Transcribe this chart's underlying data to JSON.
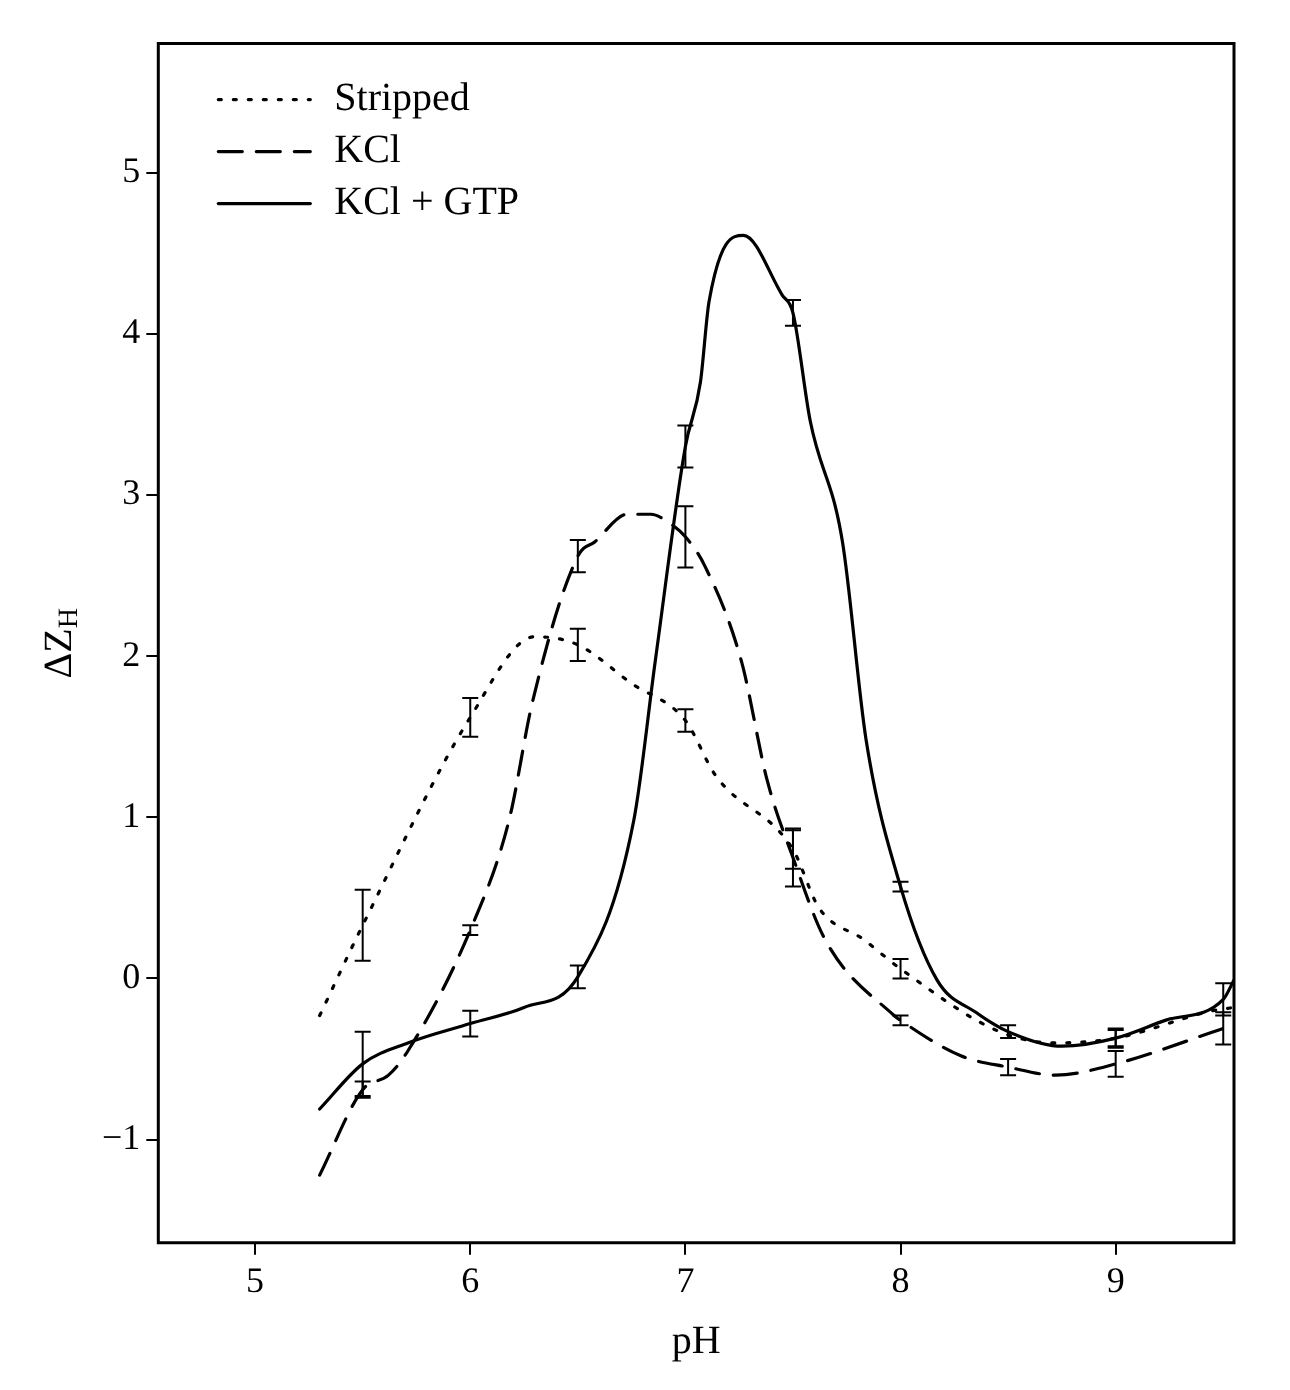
{
  "chart_data": {
    "type": "line",
    "xlabel": "pH",
    "ylabel": "ΔZ$_{H}$",
    "xlim": [
      4.55,
      9.55
    ],
    "ylim": [
      -1.64,
      5.8
    ],
    "xticks": [
      5,
      6,
      7,
      8,
      9
    ],
    "yticks": [
      -1,
      0,
      1,
      2,
      3,
      4,
      5
    ],
    "grid": false,
    "legend": "top left",
    "marker": "none",
    "series": [
      {
        "name": "Stripped",
        "color": "#000000",
        "line_style": "dotted",
        "x": [
          5.3,
          5.5,
          6.0,
          6.3,
          6.5,
          6.75,
          7.0,
          7.14,
          7.5,
          7.62,
          7.83,
          8.0,
          8.46,
          8.72,
          9.0,
          9.45,
          9.55
        ],
        "values": [
          -0.23,
          0.33,
          1.62,
          2.12,
          2.07,
          1.83,
          1.6,
          1.26,
          0.8,
          0.44,
          0.24,
          0.06,
          -0.33,
          -0.4,
          -0.37,
          -0.2,
          -0.18
        ],
        "errors": [
          null,
          0.22,
          0.12,
          null,
          0.1,
          null,
          0.07,
          null,
          0.12,
          null,
          null,
          0.06,
          null,
          null,
          0.06,
          null,
          null
        ]
      },
      {
        "name": "KCl",
        "color": "#000000",
        "line_style": "dashed",
        "x": [
          5.3,
          5.5,
          5.62,
          5.71,
          6.0,
          6.18,
          6.29,
          6.5,
          6.58,
          6.73,
          6.84,
          6.91,
          7.0,
          7.09,
          7.26,
          7.38,
          7.5,
          7.65,
          7.97,
          8.0,
          8.28,
          8.5,
          8.72,
          9.0,
          9.5
        ],
        "values": [
          -1.22,
          -0.69,
          -0.6,
          -0.45,
          0.3,
          0.98,
          1.72,
          2.62,
          2.71,
          2.88,
          2.88,
          2.84,
          2.74,
          2.56,
          1.97,
          1.23,
          0.75,
          0.24,
          -0.23,
          -0.26,
          -0.48,
          -0.55,
          -0.6,
          -0.53,
          -0.31
        ],
        "errors": [
          null,
          0.05,
          null,
          null,
          0.03,
          null,
          null,
          0.1,
          null,
          null,
          null,
          null,
          0.19,
          null,
          null,
          null,
          0.18,
          null,
          null,
          0.03,
          null,
          0.05,
          null,
          0.08,
          0.1
        ]
      },
      {
        "name": "KCl + GTP",
        "color": "#000000",
        "line_style": "solid",
        "x": [
          5.3,
          5.5,
          5.71,
          6.0,
          6.25,
          6.5,
          6.76,
          6.86,
          7.0,
          7.07,
          7.11,
          7.27,
          7.45,
          7.5,
          7.58,
          7.73,
          7.84,
          8.0,
          8.17,
          8.35,
          8.5,
          8.75,
          9.0,
          9.23,
          9.5,
          9.55
        ],
        "values": [
          -0.81,
          -0.53,
          -0.4,
          -0.28,
          -0.18,
          0.01,
          0.98,
          1.97,
          3.3,
          3.7,
          4.2,
          4.61,
          4.24,
          4.13,
          3.46,
          2.71,
          1.48,
          0.57,
          -0.01,
          -0.21,
          -0.33,
          -0.42,
          -0.37,
          -0.26,
          -0.13,
          -0.01
        ],
        "errors": [
          null,
          0.2,
          null,
          0.08,
          null,
          0.07,
          null,
          null,
          0.13,
          null,
          null,
          null,
          null,
          0.08,
          null,
          null,
          null,
          0.03,
          null,
          null,
          0.04,
          null,
          0.05,
          null,
          0.1,
          null
        ]
      }
    ]
  }
}
